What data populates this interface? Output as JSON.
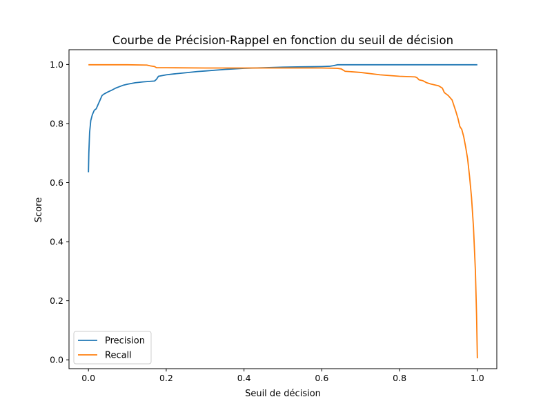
{
  "chart_data": {
    "type": "line",
    "title": "Courbe de Précision-Rappel en fonction du seuil de décision",
    "xlabel": "Seuil de décision",
    "ylabel": "Score",
    "xlim": [
      -0.05,
      1.05
    ],
    "ylim": [
      -0.03,
      1.05
    ],
    "x_ticks": [
      0.0,
      0.2,
      0.4,
      0.6,
      0.8,
      1.0
    ],
    "x_tick_labels": [
      "0.0",
      "0.2",
      "0.4",
      "0.6",
      "0.8",
      "1.0"
    ],
    "y_ticks": [
      0.0,
      0.2,
      0.4,
      0.6,
      0.8,
      1.0
    ],
    "y_tick_labels": [
      "0.0",
      "0.2",
      "0.4",
      "0.6",
      "0.8",
      "1.0"
    ],
    "grid": false,
    "legend_position": "lower-left",
    "series": [
      {
        "name": "Precision",
        "color": "#1f77b4",
        "points": [
          [
            0.0,
            0.635
          ],
          [
            0.001,
            0.7
          ],
          [
            0.003,
            0.77
          ],
          [
            0.006,
            0.81
          ],
          [
            0.01,
            0.83
          ],
          [
            0.015,
            0.845
          ],
          [
            0.02,
            0.85
          ],
          [
            0.025,
            0.865
          ],
          [
            0.03,
            0.88
          ],
          [
            0.035,
            0.895
          ],
          [
            0.04,
            0.9
          ],
          [
            0.05,
            0.907
          ],
          [
            0.06,
            0.913
          ],
          [
            0.07,
            0.92
          ],
          [
            0.08,
            0.925
          ],
          [
            0.09,
            0.93
          ],
          [
            0.1,
            0.933
          ],
          [
            0.12,
            0.938
          ],
          [
            0.14,
            0.941
          ],
          [
            0.16,
            0.943
          ],
          [
            0.17,
            0.944
          ],
          [
            0.175,
            0.95
          ],
          [
            0.18,
            0.96
          ],
          [
            0.2,
            0.965
          ],
          [
            0.22,
            0.968
          ],
          [
            0.25,
            0.972
          ],
          [
            0.28,
            0.976
          ],
          [
            0.3,
            0.978
          ],
          [
            0.35,
            0.983
          ],
          [
            0.4,
            0.987
          ],
          [
            0.45,
            0.989
          ],
          [
            0.5,
            0.991
          ],
          [
            0.55,
            0.992
          ],
          [
            0.6,
            0.993
          ],
          [
            0.62,
            0.994
          ],
          [
            0.63,
            0.996
          ],
          [
            0.64,
            0.999
          ],
          [
            0.7,
            0.999
          ],
          [
            0.8,
            0.999
          ],
          [
            0.9,
            0.999
          ],
          [
            1.0,
            0.999
          ]
        ]
      },
      {
        "name": "Recall",
        "color": "#ff7f0e",
        "points": [
          [
            0.0,
            0.999
          ],
          [
            0.1,
            0.999
          ],
          [
            0.15,
            0.998
          ],
          [
            0.16,
            0.995
          ],
          [
            0.17,
            0.993
          ],
          [
            0.175,
            0.989
          ],
          [
            0.2,
            0.989
          ],
          [
            0.3,
            0.988
          ],
          [
            0.4,
            0.988
          ],
          [
            0.5,
            0.988
          ],
          [
            0.55,
            0.988
          ],
          [
            0.6,
            0.988
          ],
          [
            0.64,
            0.987
          ],
          [
            0.65,
            0.985
          ],
          [
            0.66,
            0.977
          ],
          [
            0.7,
            0.973
          ],
          [
            0.75,
            0.965
          ],
          [
            0.8,
            0.96
          ],
          [
            0.84,
            0.958
          ],
          [
            0.845,
            0.955
          ],
          [
            0.85,
            0.948
          ],
          [
            0.86,
            0.945
          ],
          [
            0.87,
            0.938
          ],
          [
            0.88,
            0.934
          ],
          [
            0.9,
            0.928
          ],
          [
            0.91,
            0.92
          ],
          [
            0.915,
            0.905
          ],
          [
            0.925,
            0.895
          ],
          [
            0.935,
            0.88
          ],
          [
            0.94,
            0.86
          ],
          [
            0.945,
            0.84
          ],
          [
            0.95,
            0.818
          ],
          [
            0.955,
            0.79
          ],
          [
            0.96,
            0.78
          ],
          [
            0.965,
            0.755
          ],
          [
            0.97,
            0.72
          ],
          [
            0.975,
            0.68
          ],
          [
            0.98,
            0.62
          ],
          [
            0.985,
            0.55
          ],
          [
            0.99,
            0.45
          ],
          [
            0.995,
            0.3
          ],
          [
            0.998,
            0.15
          ],
          [
            1.0,
            0.005
          ]
        ]
      }
    ]
  }
}
